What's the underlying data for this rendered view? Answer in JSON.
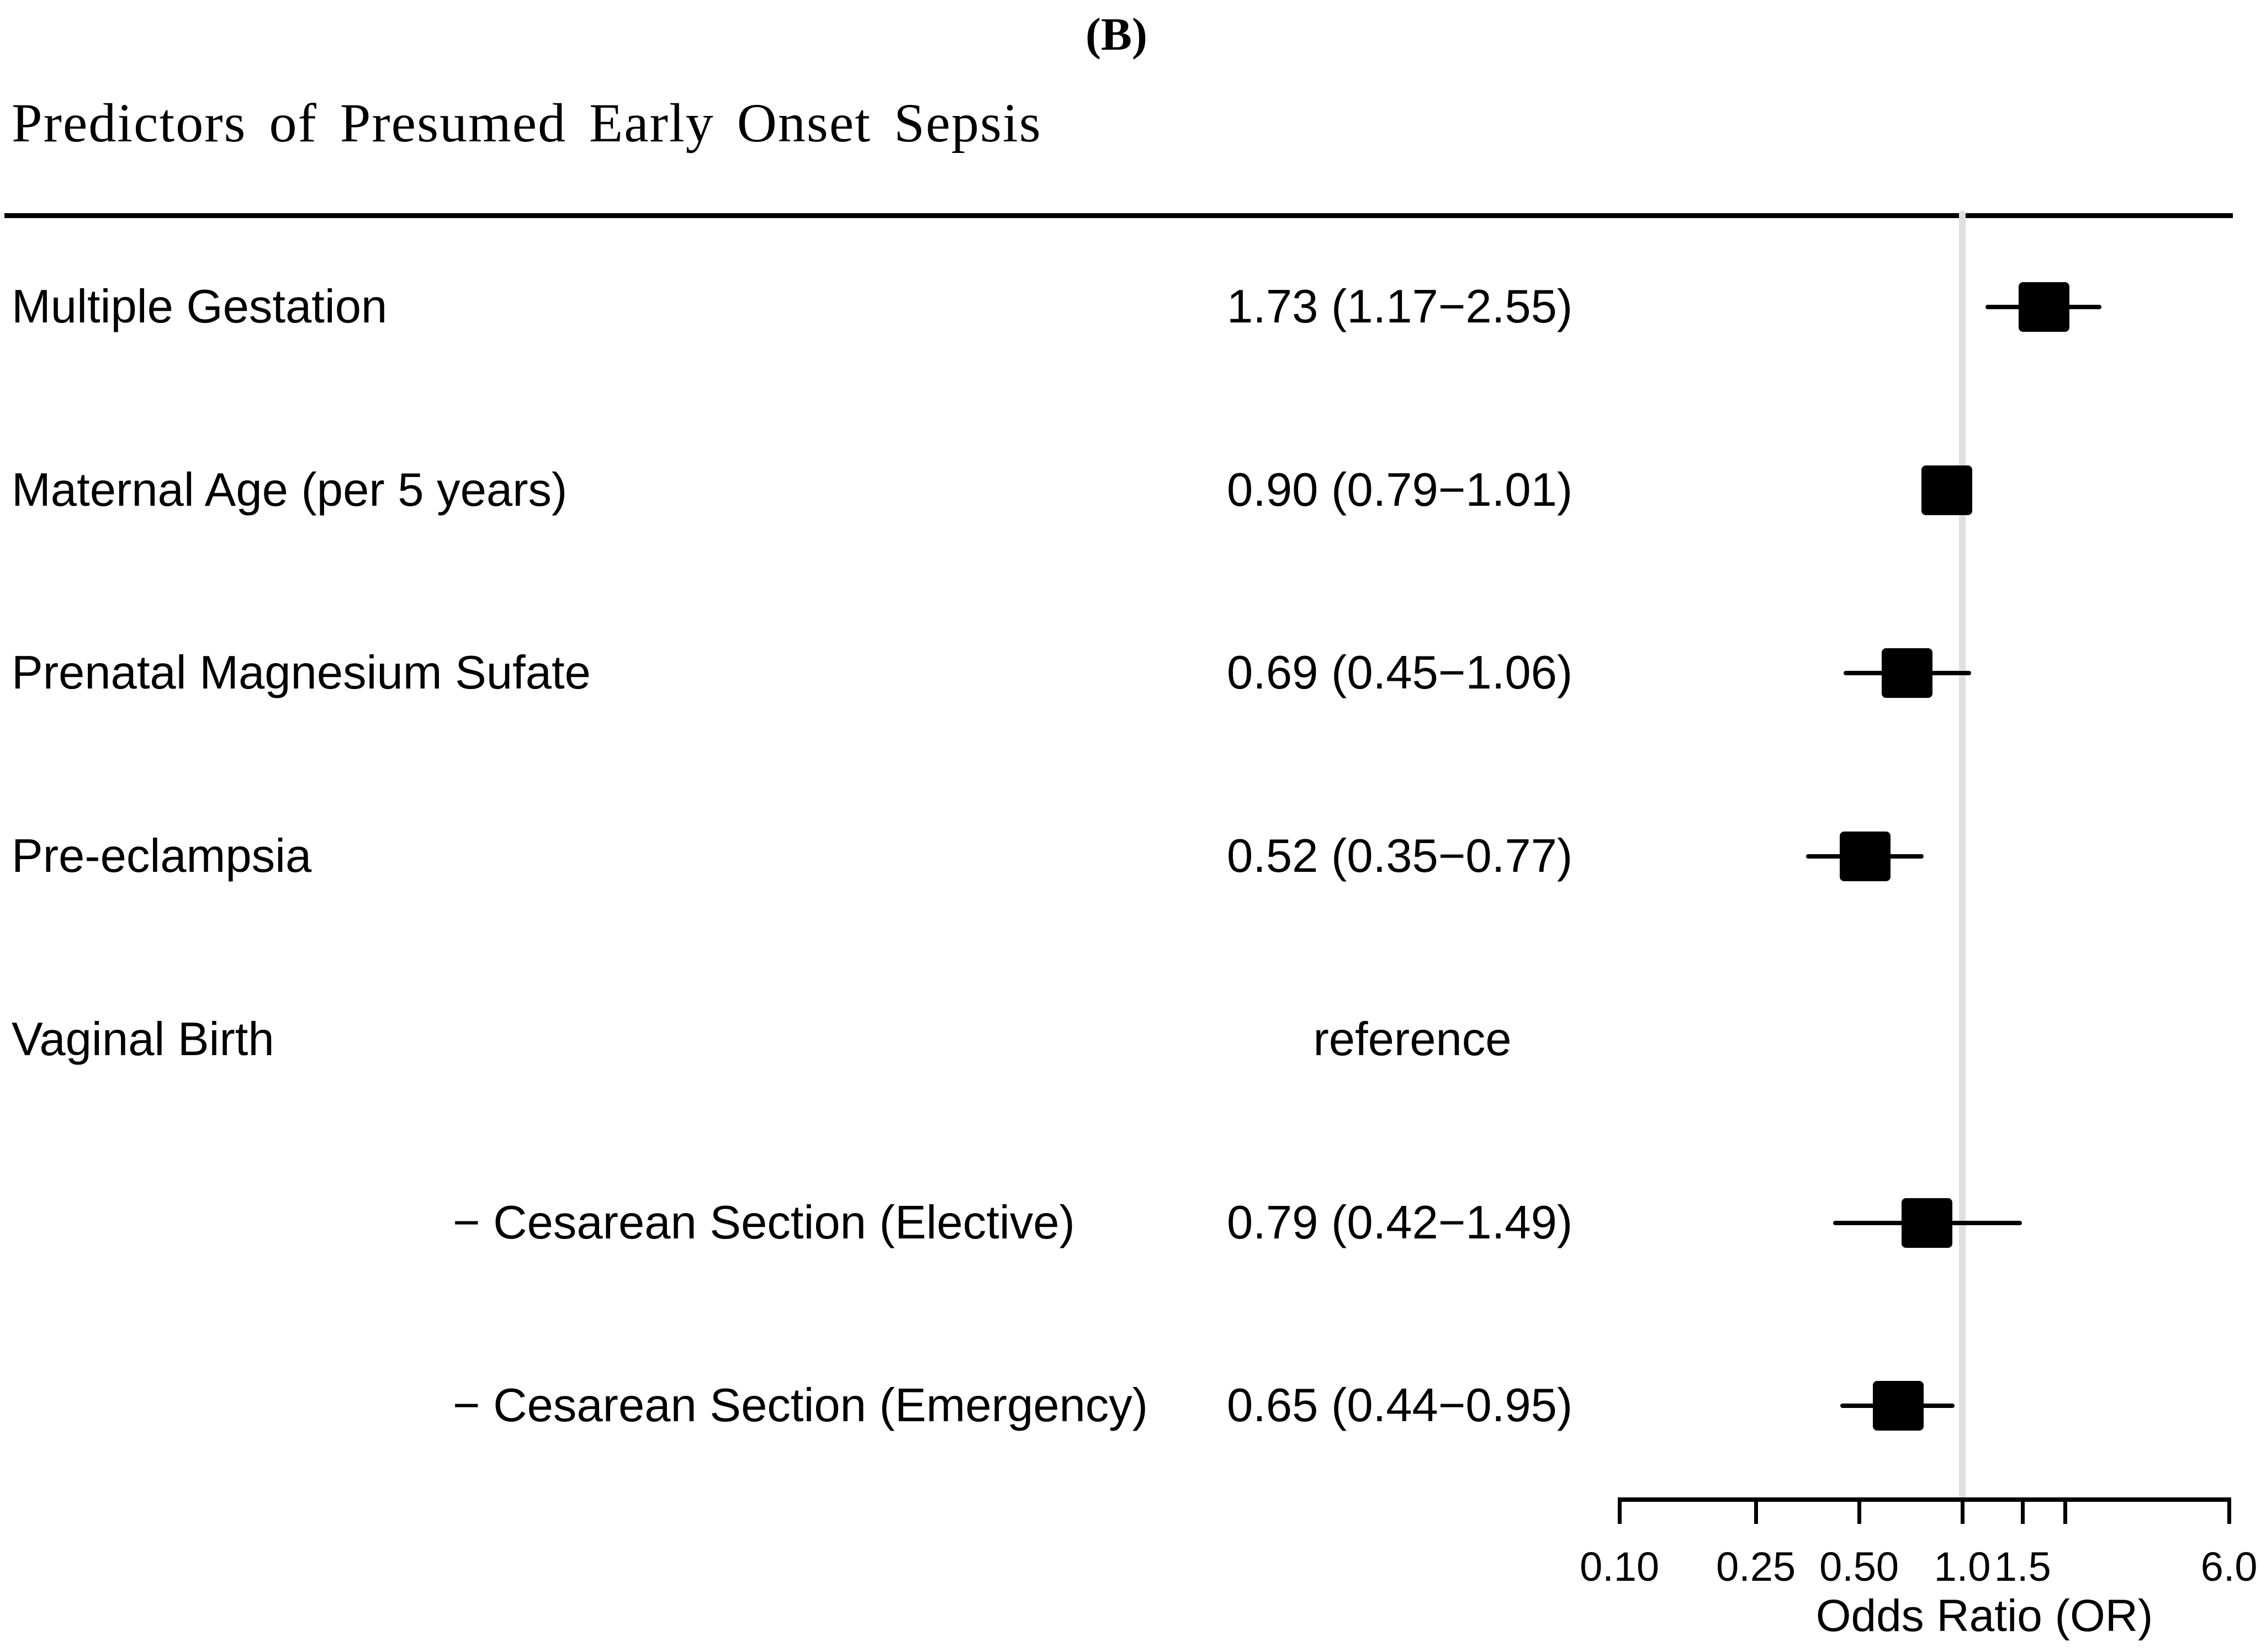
{
  "chart_data": {
    "type": "forest",
    "panel_label": "(B)",
    "title": "Predictors of Presumed Early Onset Sepsis",
    "x_axis": {
      "label": "Odds Ratio (OR)",
      "scale": "log",
      "range": [
        0.1,
        6.0
      ],
      "ticks": [
        {
          "value": 0.1,
          "label": "0.10"
        },
        {
          "value": 0.25,
          "label": "0.25"
        },
        {
          "value": 0.5,
          "label": "0.50"
        },
        {
          "value": 1.0,
          "label": "1.0"
        },
        {
          "value": 1.5,
          "label": "1.5"
        },
        {
          "value": 2.0,
          "label": ""
        },
        {
          "value": 6.0,
          "label": "6.0"
        }
      ]
    },
    "reference_line_at": 1.0,
    "colors": {
      "marker": "#000000",
      "text": "#000000",
      "reference_line": "#dfdfdf",
      "background": "#ffffff"
    },
    "rows": [
      {
        "label": "Multiple Gestation",
        "indent": false,
        "value_text": "1.73 (1.17−2.55)",
        "or": 1.73,
        "ci_low": 1.17,
        "ci_high": 2.55
      },
      {
        "label": "Maternal Age (per 5 years)",
        "indent": false,
        "value_text": "0.90 (0.79−1.01)",
        "or": 0.9,
        "ci_low": 0.79,
        "ci_high": 1.01
      },
      {
        "label": "Prenatal Magnesium Sufate",
        "indent": false,
        "value_text": "0.69 (0.45−1.06)",
        "or": 0.69,
        "ci_low": 0.45,
        "ci_high": 1.06
      },
      {
        "label": "Pre-eclampsia",
        "indent": false,
        "value_text": "0.52 (0.35−0.77)",
        "or": 0.52,
        "ci_low": 0.35,
        "ci_high": 0.77
      },
      {
        "label": "Vaginal Birth",
        "indent": false,
        "value_text": "reference",
        "or": null,
        "ci_low": null,
        "ci_high": null
      },
      {
        "label": "− Cesarean Section (Elective)",
        "indent": true,
        "value_text": "0.79 (0.42−1.49)",
        "or": 0.79,
        "ci_low": 0.42,
        "ci_high": 1.49
      },
      {
        "label": "− Cesarean Section (Emergency)",
        "indent": true,
        "value_text": "0.65 (0.44−0.95)",
        "or": 0.65,
        "ci_low": 0.44,
        "ci_high": 0.95
      }
    ]
  }
}
